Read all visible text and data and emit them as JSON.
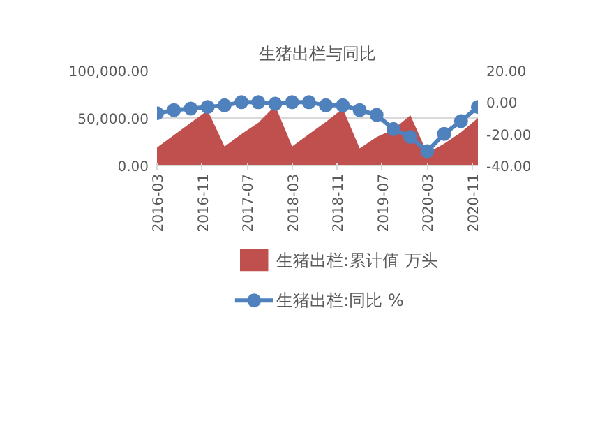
{
  "chart_data": {
    "type": "area",
    "title": "生猪出栏与同比",
    "x": [
      "2016-03",
      "2016-06",
      "2016-09",
      "2016-12",
      "2017-03",
      "2017-06",
      "2017-09",
      "2017-12",
      "2018-03",
      "2018-06",
      "2018-09",
      "2018-12",
      "2019-03",
      "2019-06",
      "2019-09",
      "2019-12",
      "2020-03",
      "2020-06",
      "2020-09",
      "2020-12"
    ],
    "series": [
      {
        "name": "生猪出栏:累计值 万头",
        "color": "#c0504d",
        "values": [
          19000,
          32000,
          45000,
          58000,
          20000,
          33000,
          45000,
          63000,
          20000,
          33000,
          46000,
          60000,
          18000,
          30000,
          38000,
          53000,
          13000,
          23000,
          35000,
          50000
        ]
      },
      {
        "name": "生猪出栏:同比 %",
        "type": "line",
        "axis": "y2",
        "color": "#4f81bd",
        "marker": "circle",
        "values": [
          -7,
          -5,
          -4,
          -3,
          -2,
          0,
          0,
          -1,
          0,
          0,
          -2,
          -2,
          -5,
          -8,
          -17,
          -22,
          -31,
          -20,
          -12,
          -3
        ]
      }
    ],
    "xlim": [
      "2016-03",
      "2020-12"
    ],
    "xticks": [
      {
        "value": "2016-03",
        "label": "2016-03"
      },
      {
        "value": "2016-11",
        "label": "2016-11"
      },
      {
        "value": "2017-07",
        "label": "2017-07"
      },
      {
        "value": "2018-03",
        "label": "2018-03"
      },
      {
        "value": "2018-11",
        "label": "2018-11"
      },
      {
        "value": "2019-07",
        "label": "2019-07"
      },
      {
        "value": "2020-03",
        "label": "2020-03"
      },
      {
        "value": "2020-11",
        "label": "2020-11"
      }
    ],
    "ylim": [
      0,
      100000
    ],
    "yticks": [
      {
        "value": 0,
        "label": "0.00"
      },
      {
        "value": 50000,
        "label": "50,000.00"
      },
      {
        "value": 100000,
        "label": "100,000.00"
      }
    ],
    "y2lim": [
      -40,
      20
    ],
    "y2ticks": [
      {
        "value": -40,
        "label": "-40.00"
      },
      {
        "value": -20,
        "label": "-20.00"
      },
      {
        "value": 0,
        "label": "0.00"
      },
      {
        "value": 20,
        "label": "20.00"
      }
    ],
    "grid": "y",
    "legend": "bottom"
  }
}
